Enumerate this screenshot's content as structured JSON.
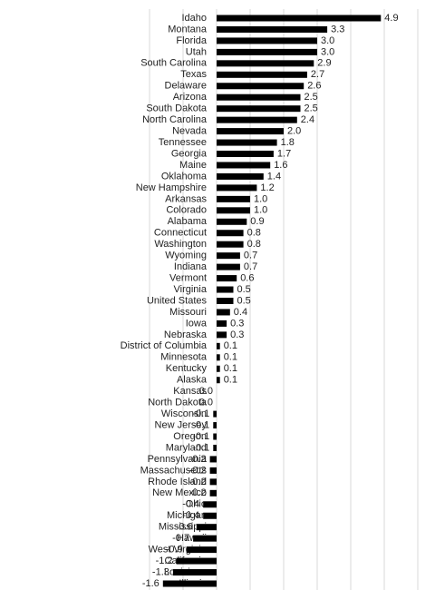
{
  "chart_data": {
    "type": "hbar",
    "color": "#000000",
    "grid": true,
    "xlim": [
      -2,
      6
    ],
    "xticks": [
      -2,
      -1,
      0,
      1,
      2,
      3,
      4,
      5,
      6
    ],
    "categories": [
      "Idaho",
      "Montana",
      "Florida",
      "Utah",
      "South Carolina",
      "Texas",
      "Delaware",
      "Arizona",
      "South Dakota",
      "North Carolina",
      "Nevada",
      "Tennessee",
      "Georgia",
      "Maine",
      "Oklahoma",
      "New Hampshire",
      "Arkansas",
      "Colorado",
      "Alabama",
      "Connecticut",
      "Washington",
      "Wyoming",
      "Indiana",
      "Vermont",
      "Virginia",
      "United States",
      "Missouri",
      "Iowa",
      "Nebraska",
      "District of Columbia",
      "Minnesota",
      "Kentucky",
      "Alaska",
      "Kansas",
      "North Dakota",
      "Wisconsin",
      "New Jersey",
      "Oregon",
      "Maryland",
      "Pennsylvania",
      "Massachusetts",
      "Rhode Island",
      "New Mexico",
      "Ohio",
      "Michigan",
      "Mississippi",
      "Hawaii",
      "West Virginia",
      "California",
      "Louisiana",
      "Illinois"
    ],
    "values": [
      4.9,
      3.3,
      3.0,
      3.0,
      2.9,
      2.7,
      2.6,
      2.5,
      2.5,
      2.4,
      2.0,
      1.8,
      1.7,
      1.6,
      1.4,
      1.2,
      1.0,
      1.0,
      0.9,
      0.8,
      0.8,
      0.7,
      0.7,
      0.6,
      0.5,
      0.5,
      0.4,
      0.3,
      0.3,
      0.1,
      0.1,
      0.1,
      0.1,
      0.0,
      0.0,
      -0.1,
      -0.1,
      -0.1,
      -0.1,
      -0.2,
      -0.2,
      -0.2,
      -0.2,
      -0.4,
      -0.4,
      -0.6,
      -0.7,
      -0.9,
      -1.2,
      -1.3,
      -1.6
    ],
    "value_labels": [
      "4.9",
      "3.3",
      "3.0",
      "3.0",
      "2.9",
      "2.7",
      "2.6",
      "2.5",
      "2.5",
      "2.4",
      "2.0",
      "1.8",
      "1.7",
      "1.6",
      "1.4",
      "1.2",
      "1.0",
      "1.0",
      "0.9",
      "0.8",
      "0.8",
      "0.7",
      "0.7",
      "0.6",
      "0.5",
      "0.5",
      "0.4",
      "0.3",
      "0.3",
      "0.1",
      "0.1",
      "0.1",
      "0.1",
      "0.0",
      "0.0",
      "-0.1",
      "-0.1",
      "-0.1",
      "-0.1",
      "-0.2",
      "-0.2",
      "-0.2",
      "-0.2",
      "-0.4",
      "-0.4",
      "-0.6",
      "-0.7",
      "-0.9",
      "-1.2",
      "-1.3",
      "-1.6"
    ]
  }
}
